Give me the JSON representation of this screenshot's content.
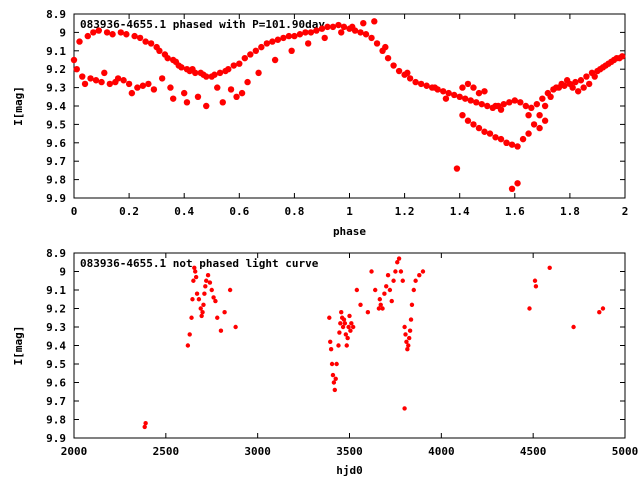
{
  "chart_data": [
    {
      "type": "scatter",
      "title": "083936-4655.1  phased with P=101.90day",
      "xlabel": "phase",
      "ylabel": "I[mag]",
      "xlim": [
        0,
        2
      ],
      "ylim": [
        9.9,
        8.9
      ],
      "y_inverted": true,
      "x_ticks": [
        "0",
        "0.2",
        "0.4",
        "0.6",
        "0.8",
        "1",
        "1.2",
        "1.4",
        "1.6",
        "1.8",
        "2"
      ],
      "y_ticks": [
        "8.9",
        "9",
        "9.1",
        "9.2",
        "9.3",
        "9.4",
        "9.5",
        "9.6",
        "9.7",
        "9.8",
        "9.9"
      ],
      "grid": false,
      "legend": "none",
      "marker_color": "#ff0000",
      "series": [
        {
          "x": [
            0.0,
            0.02,
            0.05,
            0.07,
            0.09,
            0.12,
            0.14,
            0.17,
            0.19,
            0.22,
            0.24,
            0.26,
            0.28,
            0.3,
            0.31,
            0.33,
            0.34,
            0.36,
            0.37,
            0.38,
            0.39,
            0.41,
            0.42,
            0.43,
            0.44,
            0.46,
            0.47,
            0.48,
            0.5,
            0.51,
            0.53,
            0.55,
            0.56,
            0.58,
            0.6,
            0.62,
            0.64,
            0.66,
            0.68,
            0.7,
            0.72,
            0.74,
            0.76,
            0.78,
            0.8,
            0.82,
            0.84,
            0.86,
            0.88,
            0.9,
            0.92,
            0.94,
            0.96,
            0.98,
            1.0,
            1.02,
            1.04,
            1.06,
            1.08,
            1.1,
            1.12,
            1.14,
            1.16,
            1.18,
            1.2,
            1.22,
            1.24,
            1.26,
            1.28,
            1.3,
            1.32,
            1.34,
            1.36,
            1.38,
            1.4,
            1.42,
            1.44,
            1.46,
            1.48,
            1.5,
            1.52,
            1.54,
            1.56,
            1.58,
            1.6,
            1.62,
            1.64,
            1.66,
            1.68,
            1.7,
            1.72,
            1.74,
            1.76,
            1.78,
            1.8,
            1.82,
            1.84,
            1.86,
            1.88,
            1.9,
            1.92,
            1.94,
            1.95,
            1.96,
            1.97,
            1.98,
            1.99,
            0.01,
            0.03,
            0.06,
            0.08,
            0.1,
            0.13,
            0.15,
            0.18,
            0.2,
            0.23,
            0.25,
            0.27,
            0.29,
            0.32,
            0.35,
            0.4,
            0.45,
            0.52,
            0.57,
            0.63,
            0.67,
            0.73,
            0.79,
            0.85,
            0.91,
            0.97,
            1.01,
            1.05,
            1.09,
            1.13,
            1.21,
            1.31,
            1.35,
            1.41,
            1.43,
            1.45,
            1.47,
            1.49,
            1.51,
            1.53,
            1.55,
            1.57,
            1.59,
            1.61,
            1.63,
            1.65,
            1.67,
            1.69,
            1.71,
            1.73,
            1.75,
            1.77,
            1.79,
            1.81,
            1.83,
            1.85,
            1.87,
            1.89,
            1.91,
            1.93,
            0.04,
            0.11,
            0.16,
            0.21,
            0.36,
            0.41,
            0.48,
            0.54,
            0.59,
            0.61,
            1.39,
            1.59,
            1.61,
            1.57,
            1.53,
            1.49,
            1.45,
            1.43,
            1.47,
            1.55,
            1.65,
            1.69,
            1.71,
            1.41
          ],
          "y": [
            9.15,
            9.05,
            9.02,
            9.0,
            8.99,
            9.0,
            9.01,
            9.0,
            9.01,
            9.02,
            9.03,
            9.05,
            9.06,
            9.08,
            9.1,
            9.12,
            9.14,
            9.15,
            9.16,
            9.18,
            9.19,
            9.2,
            9.21,
            9.2,
            9.22,
            9.22,
            9.23,
            9.24,
            9.24,
            9.23,
            9.22,
            9.21,
            9.2,
            9.18,
            9.17,
            9.14,
            9.12,
            9.1,
            9.08,
            9.06,
            9.05,
            9.04,
            9.03,
            9.02,
            9.02,
            9.01,
            9.0,
            9.0,
            8.99,
            8.98,
            8.97,
            8.97,
            8.96,
            8.97,
            8.98,
            8.99,
            9.0,
            9.01,
            9.03,
            9.06,
            9.1,
            9.14,
            9.18,
            9.21,
            9.23,
            9.25,
            9.27,
            9.28,
            9.29,
            9.3,
            9.31,
            9.32,
            9.33,
            9.34,
            9.35,
            9.36,
            9.37,
            9.38,
            9.39,
            9.4,
            9.41,
            9.4,
            9.39,
            9.38,
            9.37,
            9.38,
            9.4,
            9.41,
            9.39,
            9.36,
            9.33,
            9.31,
            9.3,
            9.29,
            9.28,
            9.27,
            9.26,
            9.24,
            9.22,
            9.21,
            9.19,
            9.17,
            9.16,
            9.15,
            9.14,
            9.14,
            9.13,
            9.2,
            9.24,
            9.25,
            9.26,
            9.27,
            9.28,
            9.27,
            9.26,
            9.28,
            9.3,
            9.29,
            9.28,
            9.31,
            9.25,
            9.3,
            9.33,
            9.35,
            9.3,
            9.31,
            9.27,
            9.22,
            9.15,
            9.1,
            9.06,
            9.03,
            9.0,
            8.97,
            8.95,
            8.94,
            9.08,
            9.22,
            9.3,
            9.36,
            9.45,
            9.48,
            9.5,
            9.52,
            9.54,
            9.55,
            9.57,
            9.58,
            9.6,
            9.61,
            9.62,
            9.58,
            9.55,
            9.5,
            9.45,
            9.4,
            9.35,
            9.3,
            9.28,
            9.26,
            9.3,
            9.32,
            9.3,
            9.28,
            9.24,
            9.2,
            9.18,
            9.28,
            9.22,
            9.25,
            9.33,
            9.36,
            9.38,
            9.4,
            9.38,
            9.35,
            9.33,
            9.74,
            9.85,
            9.82,
            9.6,
            9.4,
            9.32,
            9.3,
            9.28,
            9.33,
            9.42,
            9.45,
            9.52,
            9.48,
            9.3
          ]
        }
      ]
    },
    {
      "type": "scatter",
      "title": "083936-4655.1 not phased light curve",
      "xlabel": "hjd0",
      "ylabel": "I[mag]",
      "xlim": [
        2000,
        5000
      ],
      "ylim": [
        9.9,
        8.9
      ],
      "y_inverted": true,
      "x_ticks": [
        "2000",
        "2500",
        "3000",
        "3500",
        "4000",
        "4500",
        "5000"
      ],
      "y_ticks": [
        "8.9",
        "9",
        "9.1",
        "9.2",
        "9.3",
        "9.4",
        "9.5",
        "9.6",
        "9.7",
        "9.8",
        "9.9"
      ],
      "grid": false,
      "legend": "none",
      "marker_color": "#ff0000",
      "series": [
        {
          "x": [
            2385,
            2390,
            2620,
            2630,
            2640,
            2645,
            2650,
            2655,
            2660,
            2665,
            2670,
            2680,
            2690,
            2695,
            2700,
            2705,
            2710,
            2715,
            2720,
            2730,
            2740,
            2750,
            2760,
            2770,
            2780,
            2800,
            2820,
            2850,
            2880,
            3390,
            3395,
            3400,
            3405,
            3410,
            3415,
            3420,
            3425,
            3430,
            3440,
            3445,
            3450,
            3455,
            3460,
            3465,
            3470,
            3475,
            3480,
            3485,
            3490,
            3495,
            3500,
            3505,
            3510,
            3520,
            3540,
            3560,
            3600,
            3620,
            3640,
            3660,
            3665,
            3670,
            3680,
            3690,
            3700,
            3710,
            3720,
            3730,
            3740,
            3750,
            3760,
            3770,
            3780,
            3790,
            3800,
            3805,
            3810,
            3815,
            3820,
            3825,
            3830,
            3835,
            3840,
            3850,
            3860,
            3880,
            3900,
            3800,
            4480,
            4510,
            4515,
            4590,
            4720,
            4860,
            4880
          ],
          "y": [
            9.84,
            9.82,
            9.4,
            9.34,
            9.25,
            9.15,
            9.05,
            8.98,
            9.0,
            9.03,
            9.12,
            9.15,
            9.2,
            9.24,
            9.22,
            9.18,
            9.12,
            9.08,
            9.05,
            9.02,
            9.06,
            9.1,
            9.14,
            9.16,
            9.25,
            9.32,
            9.22,
            9.1,
            9.3,
            9.25,
            9.38,
            9.42,
            9.5,
            9.56,
            9.6,
            9.64,
            9.58,
            9.5,
            9.4,
            9.33,
            9.28,
            9.22,
            9.25,
            9.3,
            9.26,
            9.28,
            9.34,
            9.4,
            9.36,
            9.3,
            9.24,
            9.32,
            9.28,
            9.3,
            9.1,
            9.18,
            9.22,
            9.0,
            9.1,
            9.2,
            9.15,
            9.18,
            9.2,
            9.12,
            9.08,
            9.02,
            9.1,
            9.16,
            9.05,
            9.0,
            8.95,
            8.93,
            9.0,
            9.05,
            9.3,
            9.34,
            9.38,
            9.42,
            9.4,
            9.36,
            9.32,
            9.26,
            9.18,
            9.1,
            9.05,
            9.02,
            9.0,
            9.74,
            9.2,
            9.05,
            9.08,
            8.98,
            9.3,
            9.22,
            9.2
          ]
        }
      ]
    }
  ]
}
